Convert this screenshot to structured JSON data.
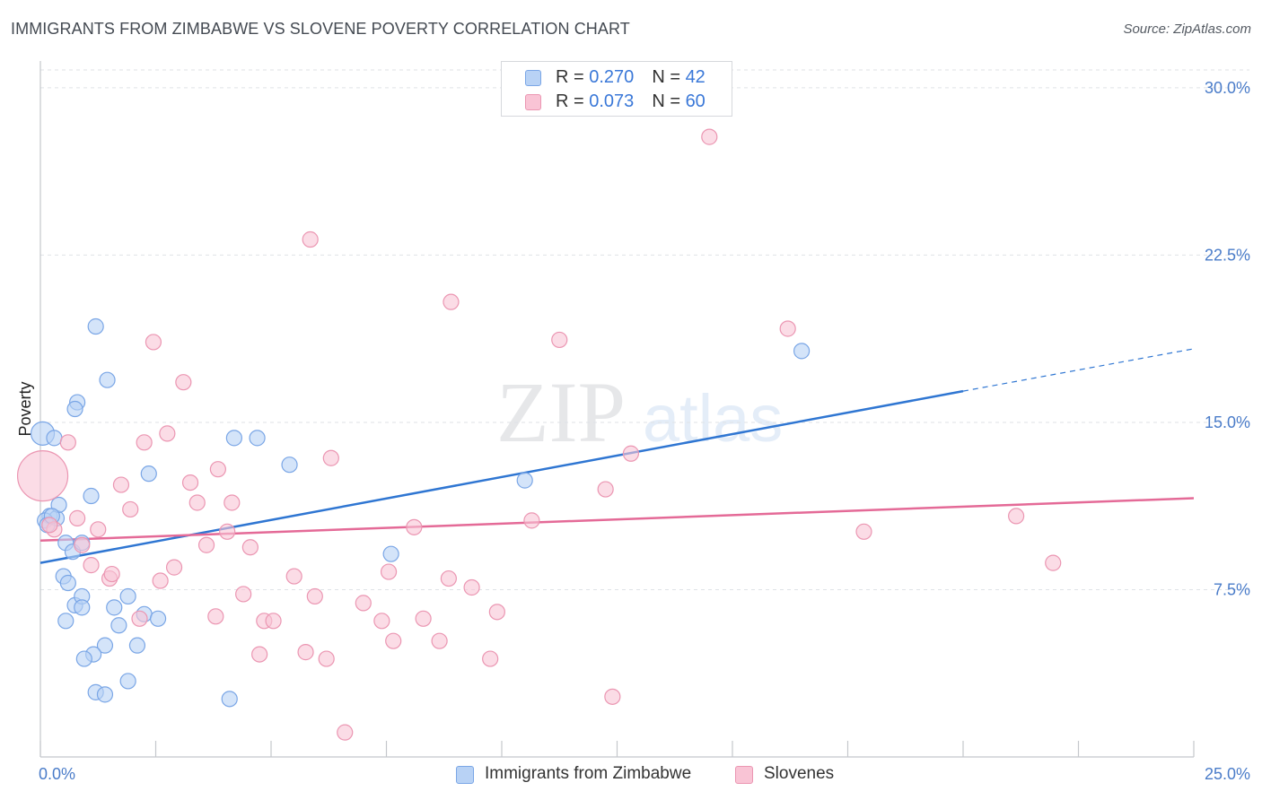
{
  "header": {
    "title": "IMMIGRANTS FROM ZIMBABWE VS SLOVENE POVERTY CORRELATION CHART",
    "source": "Source: ZipAtlas.com"
  },
  "watermark": {
    "zip": "ZIP",
    "atlas": "atlas"
  },
  "colors": {
    "blue_fill": "#b8d2f5",
    "blue_stroke": "#7aa6e6",
    "blue_line": "#2f76d2",
    "pink_fill": "#f9c4d5",
    "pink_stroke": "#eb96b2",
    "pink_line": "#e46a97",
    "tick_text": "#4a7cc9",
    "grid": "#dfe2e6"
  },
  "legend_stats": [
    {
      "r_label": "R = ",
      "r_value": "0.270",
      "n_label": "N = ",
      "n_value": "42"
    },
    {
      "r_label": "R = ",
      "r_value": "0.073",
      "n_label": "N = ",
      "n_value": "60"
    }
  ],
  "bottom_legend": [
    "Immigrants from Zimbabwe",
    "Slovenes"
  ],
  "chart_data": {
    "type": "scatter",
    "title": "IMMIGRANTS FROM ZIMBABWE VS SLOVENE POVERTY CORRELATION CHART",
    "xlabel": "",
    "ylabel": "Poverty",
    "xlim": [
      0,
      25
    ],
    "ylim": [
      0,
      30.8
    ],
    "x_tick_labels": [
      "0.0%",
      "25.0%"
    ],
    "y_ticks": [
      7.5,
      15.0,
      22.5,
      30.0
    ],
    "y_tick_labels": [
      "7.5%",
      "15.0%",
      "22.5%",
      "30.0%"
    ],
    "grid": "horizontal dashed",
    "legend": "top-center and bottom",
    "series": [
      {
        "name": "Immigrants from Zimbabwe",
        "color": "#b8d2f5",
        "r": 0.27,
        "n": 42,
        "trend": {
          "x": [
            0,
            20
          ],
          "y": [
            8.7,
            16.4
          ],
          "dashed_to": [
            25,
            18.3
          ]
        },
        "points": [
          [
            0.05,
            14.5,
            2
          ],
          [
            0.3,
            14.3,
            1
          ],
          [
            0.2,
            10.8,
            1
          ],
          [
            0.35,
            10.7,
            1
          ],
          [
            0.1,
            10.6,
            1
          ],
          [
            0.4,
            11.3,
            1
          ],
          [
            0.55,
            9.6,
            1
          ],
          [
            0.7,
            9.2,
            1
          ],
          [
            0.9,
            9.6,
            1
          ],
          [
            0.8,
            15.9,
            1
          ],
          [
            0.75,
            15.6,
            1
          ],
          [
            1.2,
            19.3,
            1
          ],
          [
            1.45,
            16.9,
            1
          ],
          [
            1.1,
            11.7,
            1
          ],
          [
            2.35,
            12.7,
            1
          ],
          [
            0.5,
            8.1,
            1
          ],
          [
            0.6,
            7.8,
            1
          ],
          [
            0.75,
            6.8,
            1
          ],
          [
            0.9,
            7.2,
            1
          ],
          [
            0.55,
            6.1,
            1
          ],
          [
            0.9,
            6.7,
            1
          ],
          [
            1.6,
            6.7,
            1
          ],
          [
            1.7,
            5.9,
            1
          ],
          [
            1.9,
            7.2,
            1
          ],
          [
            2.25,
            6.4,
            1
          ],
          [
            2.55,
            6.2,
            1
          ],
          [
            1.4,
            5.0,
            1
          ],
          [
            1.15,
            4.6,
            1
          ],
          [
            0.95,
            4.4,
            1
          ],
          [
            2.1,
            5.0,
            1
          ],
          [
            1.2,
            2.9,
            1
          ],
          [
            1.4,
            2.8,
            1
          ],
          [
            1.9,
            3.4,
            1
          ],
          [
            4.2,
            14.3,
            1
          ],
          [
            4.7,
            14.3,
            1
          ],
          [
            5.4,
            13.1,
            1
          ],
          [
            4.1,
            2.6,
            1
          ],
          [
            7.6,
            9.1,
            1
          ],
          [
            10.5,
            12.4,
            1
          ],
          [
            16.5,
            18.2,
            1
          ],
          [
            0.15,
            10.4,
            1
          ],
          [
            0.25,
            10.8,
            1
          ]
        ]
      },
      {
        "name": "Slovenes",
        "color": "#f9c4d5",
        "r": 0.073,
        "n": 60,
        "trend": {
          "x": [
            0,
            25
          ],
          "y": [
            9.7,
            11.6
          ]
        },
        "points": [
          [
            0.05,
            12.6,
            3
          ],
          [
            0.3,
            10.2,
            1
          ],
          [
            0.6,
            14.1,
            1
          ],
          [
            0.8,
            10.7,
            1
          ],
          [
            0.9,
            9.5,
            1
          ],
          [
            1.25,
            10.2,
            1
          ],
          [
            1.1,
            8.6,
            1
          ],
          [
            1.5,
            8.0,
            1
          ],
          [
            1.55,
            8.2,
            1
          ],
          [
            1.75,
            12.2,
            1
          ],
          [
            1.95,
            11.1,
            1
          ],
          [
            2.25,
            14.1,
            1
          ],
          [
            2.45,
            18.6,
            1
          ],
          [
            2.75,
            14.5,
            1
          ],
          [
            3.1,
            16.8,
            1
          ],
          [
            3.25,
            12.3,
            1
          ],
          [
            3.4,
            11.4,
            1
          ],
          [
            2.9,
            8.5,
            1
          ],
          [
            2.6,
            7.9,
            1
          ],
          [
            2.15,
            6.2,
            1
          ],
          [
            3.6,
            9.5,
            1
          ],
          [
            3.85,
            12.9,
            1
          ],
          [
            4.15,
            11.4,
            1
          ],
          [
            4.05,
            10.1,
            1
          ],
          [
            4.55,
            9.4,
            1
          ],
          [
            4.4,
            7.3,
            1
          ],
          [
            3.8,
            6.3,
            1
          ],
          [
            4.85,
            6.1,
            1
          ],
          [
            5.05,
            6.1,
            1
          ],
          [
            4.75,
            4.6,
            1
          ],
          [
            5.5,
            8.1,
            1
          ],
          [
            5.75,
            4.7,
            1
          ],
          [
            5.95,
            7.2,
            1
          ],
          [
            6.2,
            4.4,
            1
          ],
          [
            6.3,
            13.4,
            1
          ],
          [
            5.85,
            23.2,
            1
          ],
          [
            6.6,
            1.1,
            1
          ],
          [
            7.0,
            6.9,
            1
          ],
          [
            7.4,
            6.1,
            1
          ],
          [
            7.55,
            8.3,
            1
          ],
          [
            7.65,
            5.2,
            1
          ],
          [
            8.1,
            10.3,
            1
          ],
          [
            8.3,
            6.2,
            1
          ],
          [
            8.65,
            5.2,
            1
          ],
          [
            8.85,
            8.0,
            1
          ],
          [
            8.9,
            20.4,
            1
          ],
          [
            9.35,
            7.6,
            1
          ],
          [
            9.75,
            4.4,
            1
          ],
          [
            9.9,
            6.5,
            1
          ],
          [
            10.65,
            10.6,
            1
          ],
          [
            11.25,
            18.7,
            1
          ],
          [
            12.25,
            12.0,
            1
          ],
          [
            12.4,
            2.7,
            1
          ],
          [
            12.8,
            13.6,
            1
          ],
          [
            14.5,
            27.8,
            1
          ],
          [
            16.2,
            19.2,
            1
          ],
          [
            17.85,
            10.1,
            1
          ],
          [
            21.15,
            10.8,
            1
          ],
          [
            21.95,
            8.7,
            1
          ],
          [
            0.2,
            10.4,
            1
          ]
        ]
      }
    ]
  }
}
